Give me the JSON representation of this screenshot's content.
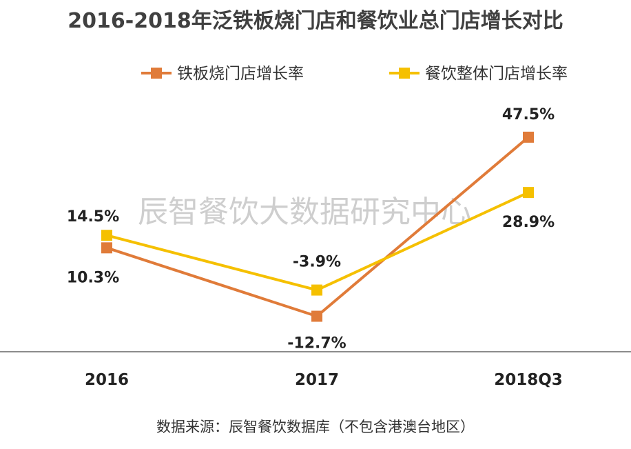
{
  "chart_data": {
    "type": "line",
    "title": "2016-2018年泛铁板烧门店和餐饮业总门店增长对比",
    "categories": [
      "2016",
      "2017",
      "2018Q3"
    ],
    "series": [
      {
        "name": "铁板烧门店增长率",
        "color": "#E07B39",
        "values": [
          10.3,
          -12.7,
          47.5
        ],
        "labels": [
          "10.3%",
          "-12.7%",
          "47.5%"
        ],
        "marker": "square"
      },
      {
        "name": "餐饮整体门店增长率",
        "color": "#F5C000",
        "values": [
          14.5,
          -3.9,
          28.9
        ],
        "labels": [
          "14.5%",
          "-3.9%",
          "28.9%"
        ],
        "marker": "square"
      }
    ],
    "ylim": [
      -20,
      60
    ],
    "grid": false,
    "legend_position": "top",
    "watermark": "辰智餐饮大数据研究中心",
    "source": "数据来源：辰智餐饮数据库（不包含港澳台地区）"
  }
}
